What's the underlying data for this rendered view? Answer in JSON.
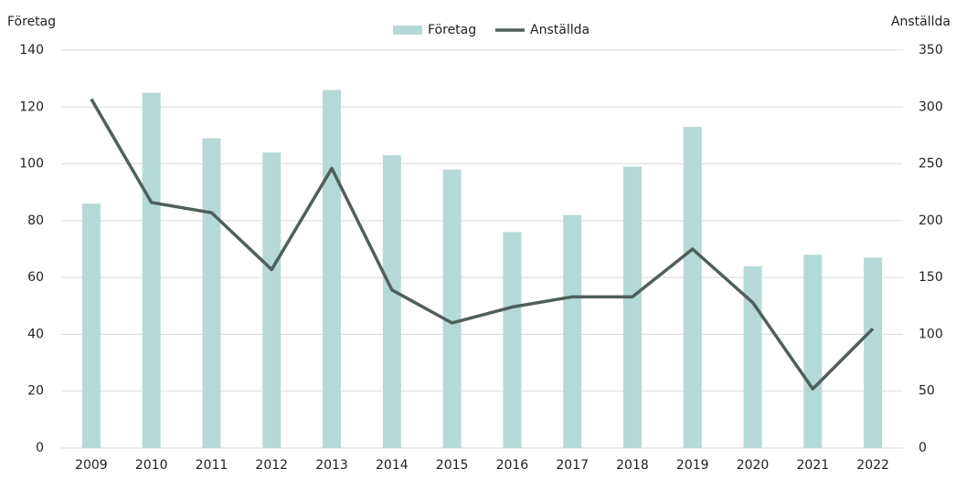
{
  "chart_data": {
    "type": "bar-line",
    "ylabel": "Företag",
    "y2label": "Anställda",
    "categories": [
      "2009",
      "2010",
      "2011",
      "2012",
      "2013",
      "2014",
      "2015",
      "2016",
      "2017",
      "2018",
      "2019",
      "2020",
      "2021",
      "2022"
    ],
    "series": [
      {
        "name": "Företag",
        "type": "bar",
        "color": "#b5d9d6",
        "values": [
          86,
          125,
          109,
          104,
          126,
          103,
          98,
          76,
          82,
          99,
          113,
          64,
          68,
          67
        ]
      },
      {
        "name": "Anställda",
        "type": "line",
        "axis": "y2",
        "color": "#4f5f5a",
        "values": [
          307,
          216,
          207,
          157,
          246,
          139,
          110,
          124,
          133,
          133,
          175,
          128,
          52,
          105
        ]
      }
    ],
    "ylim": [
      0,
      140
    ],
    "yticks": [
      0,
      20,
      40,
      60,
      80,
      100,
      120,
      140
    ],
    "y2lim": [
      0,
      350
    ],
    "y2ticks": [
      0,
      50,
      100,
      150,
      200,
      250,
      300,
      350
    ],
    "grid": true,
    "legend": "top"
  }
}
